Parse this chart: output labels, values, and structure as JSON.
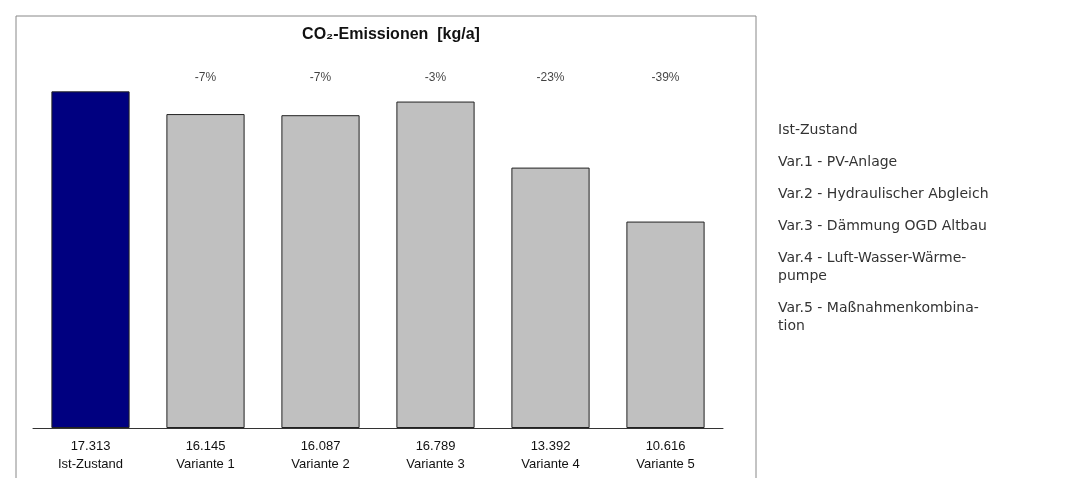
{
  "chart_data": {
    "type": "bar",
    "title": "CO₂-Emissionen  [kg/a]",
    "categories": [
      "Ist-Zustand",
      "Variante 1",
      "Variante 2",
      "Variante 3",
      "Variante 4",
      "Variante 5"
    ],
    "values": [
      17313,
      16145,
      16087,
      16789,
      13392,
      10616
    ],
    "value_labels": [
      "17.313",
      "16.145",
      "16.087",
      "16.789",
      "13.392",
      "10.616"
    ],
    "colors": [
      "#000080",
      "#c0c0c0",
      "#c0c0c0",
      "#c0c0c0",
      "#c0c0c0",
      "#c0c0c0"
    ],
    "annotations": [
      "-7%",
      "-7%",
      "-3%",
      "-23%",
      "-39%",
      "Ist-Zustand",
      "Var.1 - PV-Anlage",
      "Var.2 - Hydraulischer Abgleich",
      "Var.3 - Dämmung OGD Altbau",
      "Var.4 - Luft-Wasser-Wärme-\npumpe",
      "Var.5 - Maßnahmenkombina-\ntion"
    ],
    "data_labels": false
  }
}
